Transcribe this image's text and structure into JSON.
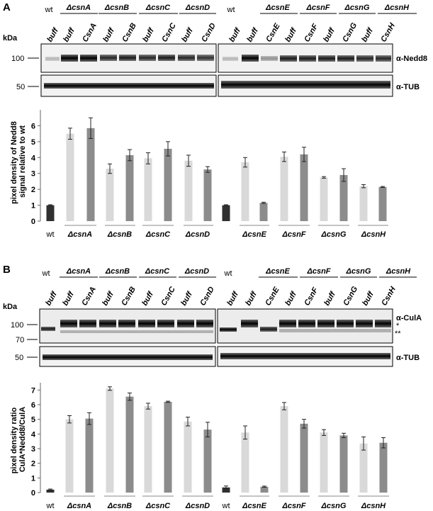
{
  "panels": [
    {
      "letter": "A",
      "genotypes_left": [
        "wt",
        "ΔcsnA",
        "ΔcsnB",
        "ΔcsnC",
        "ΔcsnD"
      ],
      "genotypes_right": [
        "wt",
        "ΔcsnE",
        "ΔcsnF",
        "ΔcsnG",
        "ΔcsnH"
      ],
      "lanes_left": [
        "buff",
        "buff",
        "CsnA",
        "buff",
        "CsnB",
        "buff",
        "CsnC",
        "buff",
        "CsnD"
      ],
      "lanes_right": [
        "buff",
        "buff",
        "CsnE",
        "buff",
        "CsnF",
        "buff",
        "CsnG",
        "buff",
        "CsnH"
      ],
      "kda_label": "kDa",
      "blots": [
        {
          "markers": [
            "100"
          ],
          "antibody": "α-Nedd8"
        },
        {
          "markers": [
            "50"
          ],
          "antibody": "α-TUB"
        }
      ],
      "asterisks": []
    },
    {
      "letter": "B",
      "genotypes_left": [
        "wt",
        "ΔcsnA",
        "ΔcsnB",
        "ΔcsnC",
        "ΔcsnD"
      ],
      "genotypes_right": [
        "wt",
        "ΔcsnE",
        "ΔcsnF",
        "ΔcsnG",
        "ΔcsnH"
      ],
      "lanes_left": [
        "buff",
        "buff",
        "CsnA",
        "buff",
        "CsnB",
        "buff",
        "CsnC",
        "buff",
        "CsnD"
      ],
      "lanes_right": [
        "buff",
        "buff",
        "CsnE",
        "buff",
        "CsnF",
        "buff",
        "CsnG",
        "buff",
        "CsnH"
      ],
      "kda_label": "kDa",
      "blots": [
        {
          "markers": [
            "100",
            "70"
          ],
          "antibody": "α-CulA"
        },
        {
          "markers": [
            "50"
          ],
          "antibody": "α-TUB"
        }
      ],
      "asterisks": [
        "*",
        "**"
      ]
    }
  ],
  "chart_data": [
    {
      "type": "bar",
      "ylabel": "pixel density of Nedd8 signal relative to wt",
      "ylim": [
        0,
        7
      ],
      "yticks": [
        "0",
        "1",
        "2",
        "3",
        "4",
        "5",
        "6"
      ],
      "group_labels": [
        "wt",
        "ΔcsnA",
        "ΔcsnB",
        "ΔcsnC",
        "ΔcsnD",
        "ΔcsnE",
        "ΔcsnF",
        "ΔcsnG",
        "ΔcsnH"
      ],
      "bars": [
        {
          "group": "wt",
          "value": 1.0,
          "error": 0.03,
          "shade": "#303030"
        },
        {
          "group": "ΔcsnA",
          "value": 5.5,
          "error": 0.35,
          "shade": "#d9d9d9"
        },
        {
          "group": "ΔcsnA",
          "value": 5.85,
          "error": 0.65,
          "shade": "#8c8c8c"
        },
        {
          "group": "ΔcsnB",
          "value": 3.3,
          "error": 0.3,
          "shade": "#d9d9d9"
        },
        {
          "group": "ΔcsnB",
          "value": 4.15,
          "error": 0.35,
          "shade": "#8c8c8c"
        },
        {
          "group": "ΔcsnC",
          "value": 3.95,
          "error": 0.35,
          "shade": "#d9d9d9"
        },
        {
          "group": "ΔcsnC",
          "value": 4.55,
          "error": 0.45,
          "shade": "#8c8c8c"
        },
        {
          "group": "ΔcsnD",
          "value": 3.8,
          "error": 0.35,
          "shade": "#d9d9d9"
        },
        {
          "group": "ΔcsnD",
          "value": 3.25,
          "error": 0.18,
          "shade": "#8c8c8c"
        },
        {
          "group": "wt",
          "value": 1.0,
          "error": 0.03,
          "shade": "#303030"
        },
        {
          "group": "ΔcsnE",
          "value": 3.7,
          "error": 0.3,
          "shade": "#d9d9d9"
        },
        {
          "group": "ΔcsnE",
          "value": 1.15,
          "error": 0.04,
          "shade": "#8c8c8c"
        },
        {
          "group": "ΔcsnF",
          "value": 4.05,
          "error": 0.3,
          "shade": "#d9d9d9"
        },
        {
          "group": "ΔcsnF",
          "value": 4.2,
          "error": 0.45,
          "shade": "#8c8c8c"
        },
        {
          "group": "ΔcsnG",
          "value": 2.75,
          "error": 0.05,
          "shade": "#d9d9d9"
        },
        {
          "group": "ΔcsnG",
          "value": 2.9,
          "error": 0.4,
          "shade": "#8c8c8c"
        },
        {
          "group": "ΔcsnH",
          "value": 2.2,
          "error": 0.1,
          "shade": "#d9d9d9"
        },
        {
          "group": "ΔcsnH",
          "value": 2.15,
          "error": 0.03,
          "shade": "#8c8c8c"
        }
      ]
    },
    {
      "type": "bar",
      "ylabel": "pixel density ratio CulA*Nedd8/CulA",
      "ylim": [
        0,
        7.5
      ],
      "yticks": [
        "0",
        "1",
        "2",
        "3",
        "4",
        "5",
        "6",
        "7"
      ],
      "group_labels": [
        "wt",
        "ΔcsnA",
        "ΔcsnB",
        "ΔcsnC",
        "ΔcsnD",
        "wt",
        "ΔcsnE",
        "ΔcsnF",
        "ΔcsnG",
        "ΔcsnH"
      ],
      "bars": [
        {
          "group": "wt",
          "value": 0.2,
          "error": 0.04,
          "shade": "#303030"
        },
        {
          "group": "ΔcsnA",
          "value": 5.0,
          "error": 0.25,
          "shade": "#d9d9d9"
        },
        {
          "group": "ΔcsnA",
          "value": 5.05,
          "error": 0.4,
          "shade": "#8c8c8c"
        },
        {
          "group": "ΔcsnB",
          "value": 7.1,
          "error": 0.12,
          "shade": "#d9d9d9"
        },
        {
          "group": "ΔcsnB",
          "value": 6.55,
          "error": 0.25,
          "shade": "#8c8c8c"
        },
        {
          "group": "ΔcsnC",
          "value": 5.9,
          "error": 0.2,
          "shade": "#d9d9d9"
        },
        {
          "group": "ΔcsnC",
          "value": 6.2,
          "error": 0.04,
          "shade": "#8c8c8c"
        },
        {
          "group": "ΔcsnD",
          "value": 4.85,
          "error": 0.3,
          "shade": "#d9d9d9"
        },
        {
          "group": "ΔcsnD",
          "value": 4.3,
          "error": 0.5,
          "shade": "#8c8c8c"
        },
        {
          "group": "wt",
          "value": 0.35,
          "error": 0.1,
          "shade": "#303030"
        },
        {
          "group": "ΔcsnE",
          "value": 4.1,
          "error": 0.45,
          "shade": "#d9d9d9"
        },
        {
          "group": "ΔcsnE",
          "value": 0.4,
          "error": 0.04,
          "shade": "#8c8c8c"
        },
        {
          "group": "ΔcsnF",
          "value": 5.9,
          "error": 0.25,
          "shade": "#d9d9d9"
        },
        {
          "group": "ΔcsnF",
          "value": 4.7,
          "error": 0.3,
          "shade": "#8c8c8c"
        },
        {
          "group": "ΔcsnG",
          "value": 4.1,
          "error": 0.2,
          "shade": "#d9d9d9"
        },
        {
          "group": "ΔcsnG",
          "value": 3.9,
          "error": 0.15,
          "shade": "#8c8c8c"
        },
        {
          "group": "ΔcsnH",
          "value": 3.35,
          "error": 0.45,
          "shade": "#d9d9d9"
        },
        {
          "group": "ΔcsnH",
          "value": 3.4,
          "error": 0.35,
          "shade": "#8c8c8c"
        }
      ]
    }
  ]
}
